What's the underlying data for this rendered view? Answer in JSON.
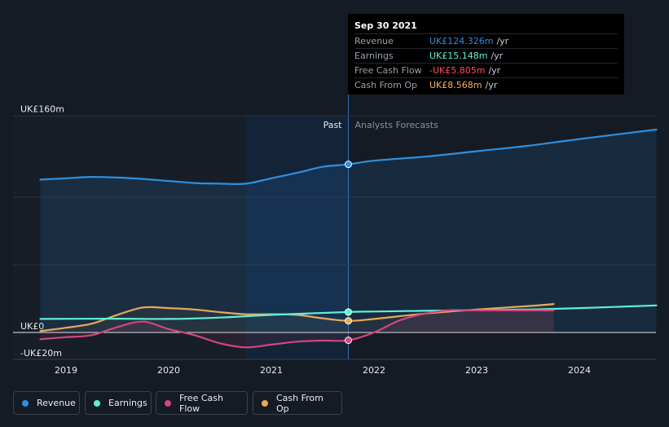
{
  "tooltip": {
    "date": "Sep 30 2021",
    "rows": [
      {
        "label": "Revenue",
        "value": "UK£124.326m",
        "unit": "/yr",
        "color": "#2e8fe0"
      },
      {
        "label": "Earnings",
        "value": "UK£15.148m",
        "unit": "/yr",
        "color": "#5ff0d4"
      },
      {
        "label": "Free Cash Flow",
        "value": "-UK£5.805m",
        "unit": "/yr",
        "color": "#ff4d5b"
      },
      {
        "label": "Cash From Op",
        "value": "UK£8.568m",
        "unit": "/yr",
        "color": "#f5b461"
      }
    ]
  },
  "sections": {
    "past": "Past",
    "forecast": "Analysts Forecasts"
  },
  "legend": [
    {
      "label": "Revenue",
      "color": "#2e8fe0"
    },
    {
      "label": "Earnings",
      "color": "#5ff0d4"
    },
    {
      "label": "Free Cash Flow",
      "color": "#d1477f"
    },
    {
      "label": "Cash From Op",
      "color": "#e6a85a"
    }
  ],
  "chart_data": {
    "type": "line",
    "ylabels": [
      "UK£160m",
      "UK£0",
      "-UK£20m"
    ],
    "xticks": [
      "2019",
      "2020",
      "2021",
      "2022",
      "2023",
      "2024"
    ],
    "ylim": [
      -20,
      160
    ],
    "past_end": 2021.75,
    "series": [
      {
        "name": "Revenue",
        "color": "#2e8fe0",
        "x": [
          2018.75,
          2019.0,
          2019.25,
          2019.5,
          2019.75,
          2020.0,
          2020.25,
          2020.5,
          2020.75,
          2021.0,
          2021.25,
          2021.5,
          2021.75,
          2022.0,
          2022.5,
          2023.0,
          2023.5,
          2024.0,
          2024.75
        ],
        "y": [
          113,
          114,
          115,
          114.5,
          113.5,
          112,
          110.5,
          110,
          110,
          114,
          118,
          122.5,
          124.3,
          127,
          130,
          134,
          138,
          143,
          150
        ]
      },
      {
        "name": "Earnings",
        "color": "#5ff0d4",
        "x": [
          2018.75,
          2019.5,
          2020.0,
          2020.5,
          2021.0,
          2021.75,
          2022.0,
          2022.5,
          2023.0,
          2023.5,
          2024.0,
          2024.75
        ],
        "y": [
          10,
          10.2,
          10,
          11,
          13,
          15.1,
          15.5,
          16,
          16.5,
          17,
          18,
          20
        ]
      },
      {
        "name": "Free Cash Flow",
        "color": "#d1477f",
        "x": [
          2018.75,
          2019.0,
          2019.25,
          2019.5,
          2019.75,
          2020.0,
          2020.25,
          2020.5,
          2020.75,
          2021.0,
          2021.25,
          2021.5,
          2021.75,
          2022.0,
          2022.25,
          2022.5,
          2022.75,
          2023.0,
          2023.5,
          2023.75
        ],
        "y": [
          -5,
          -3.5,
          -2,
          4,
          8,
          2.5,
          -2,
          -8,
          -11,
          -9,
          -6.8,
          -6,
          -5.8,
          0,
          9,
          14,
          16.5,
          16.3,
          16.3,
          16.3
        ]
      },
      {
        "name": "Cash From Op",
        "color": "#e6a85a",
        "x": [
          2018.75,
          2019.0,
          2019.25,
          2019.5,
          2019.75,
          2020.0,
          2020.25,
          2020.5,
          2020.75,
          2021.0,
          2021.25,
          2021.5,
          2021.75,
          2022.0,
          2022.5,
          2023.0,
          2023.5,
          2023.75
        ],
        "y": [
          1,
          3.5,
          6.5,
          13,
          18.5,
          18,
          17,
          15,
          13.5,
          13.5,
          13,
          10.5,
          8.6,
          10,
          14,
          17,
          19.5,
          21
        ]
      }
    ]
  }
}
